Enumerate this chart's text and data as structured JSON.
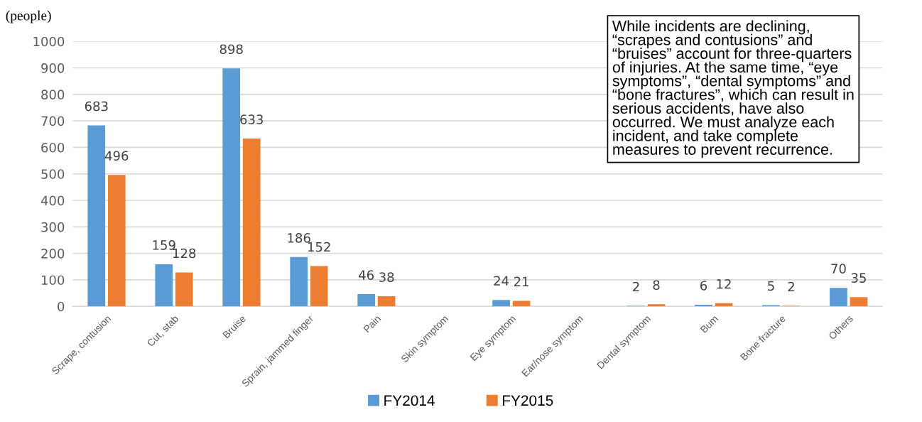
{
  "chart_data": {
    "type": "bar",
    "ylabel": "(people)",
    "categories": [
      "Scrape, contusion",
      "Cut, stab",
      "Bruise",
      "Sprain, jammed finger",
      "Pain",
      "Skin symptom",
      "Eye symptom",
      "Ear/nose symptom",
      "Dental symptom",
      "Bum",
      "Bone fracture",
      "Others"
    ],
    "series": [
      {
        "name": "FY2014",
        "color": "#5b9bd5",
        "values": [
          683,
          159,
          898,
          186,
          46,
          null,
          24,
          null,
          2,
          6,
          5,
          70
        ]
      },
      {
        "name": "FY2015",
        "color": "#ed7d31",
        "values": [
          496,
          128,
          633,
          152,
          38,
          null,
          21,
          null,
          8,
          12,
          2,
          35
        ]
      }
    ],
    "ylim": [
      0,
      1000
    ],
    "yticks": [
      0,
      100,
      200,
      300,
      400,
      500,
      600,
      700,
      800,
      900,
      1000
    ],
    "grid": "y",
    "legend": "bottom",
    "data_labels": true,
    "annotations": [
      "While incidents are declining,\n“scrapes and contusions” and\n“bruises” account for three-quarters\nof injuries. At the same time, “eye\nsymptoms”, “dental symptoms” and\n“bone fractures”, which can result in\nserious accidents, have also\noccurred. We must analyze each\nincident, and take complete\nmeasures to prevent recurrence."
    ]
  }
}
